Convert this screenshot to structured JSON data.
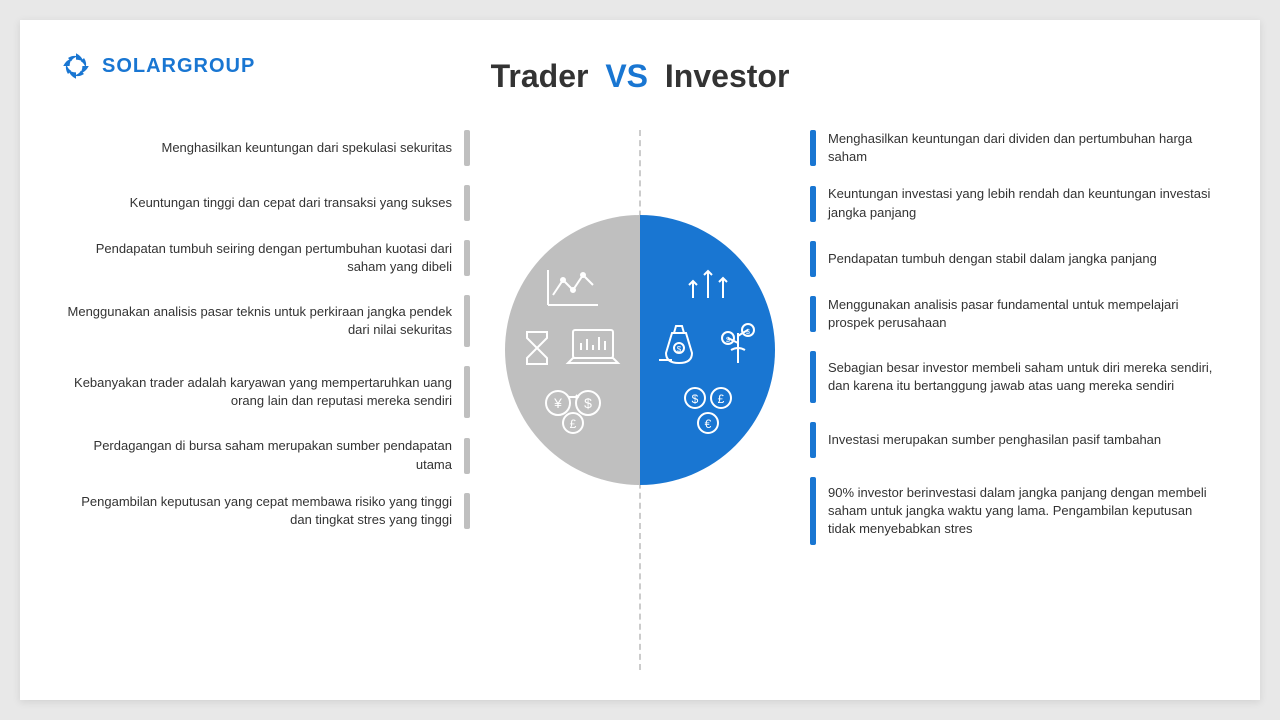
{
  "logo": {
    "text": "SOLARGROUP",
    "color": "#1976d2"
  },
  "title": {
    "left": "Trader",
    "vs": "VS",
    "right": "Investor"
  },
  "colors": {
    "gray": "#bfbfbf",
    "blue": "#1976d2",
    "text": "#333333",
    "bg": "#ffffff",
    "pageBg": "#e8e8e8"
  },
  "trader": [
    {
      "text": "Menghasilkan keuntungan dari spekulasi sekuritas",
      "h": 36
    },
    {
      "text": "Keuntungan tinggi dan cepat dari transaksi yang sukses",
      "h": 36
    },
    {
      "text": "Pendapatan tumbuh seiring dengan pertumbuhan kuotasi dari saham yang dibeli",
      "h": 36
    },
    {
      "text": "Menggunakan analisis pasar teknis untuk perkiraan jangka pendek dari nilai sekuritas",
      "h": 52
    },
    {
      "text": "Kebanyakan trader adalah karyawan yang mempertaruhkan uang orang lain dan reputasi mereka sendiri",
      "h": 52
    },
    {
      "text": "Perdagangan di bursa saham merupakan sumber pendapatan utama",
      "h": 36
    },
    {
      "text": "Pengambilan keputusan yang cepat membawa risiko yang tinggi dan tingkat stres yang tinggi",
      "h": 36
    }
  ],
  "investor": [
    {
      "text": "Menghasilkan keuntungan dari dividen dan pertumbuhan harga saham",
      "h": 36
    },
    {
      "text": "Keuntungan investasi yang lebih rendah dan keuntungan investasi jangka panjang",
      "h": 36
    },
    {
      "text": "Pendapatan tumbuh dengan stabil dalam jangka panjang",
      "h": 36
    },
    {
      "text": "Menggunakan analisis pasar fundamental untuk mempelajari prospek perusahaan",
      "h": 36
    },
    {
      "text": "Sebagian besar investor membeli saham untuk diri mereka sendiri, dan karena itu bertanggung jawab atas uang mereka sendiri",
      "h": 52
    },
    {
      "text": "Investasi merupakan sumber penghasilan pasif tambahan",
      "h": 36
    },
    {
      "text": "90% investor berinvestasi dalam jangka panjang dengan membeli saham untuk jangka waktu yang lama. Pengambilan keputusan tidak menyebabkan stres",
      "h": 68
    }
  ]
}
